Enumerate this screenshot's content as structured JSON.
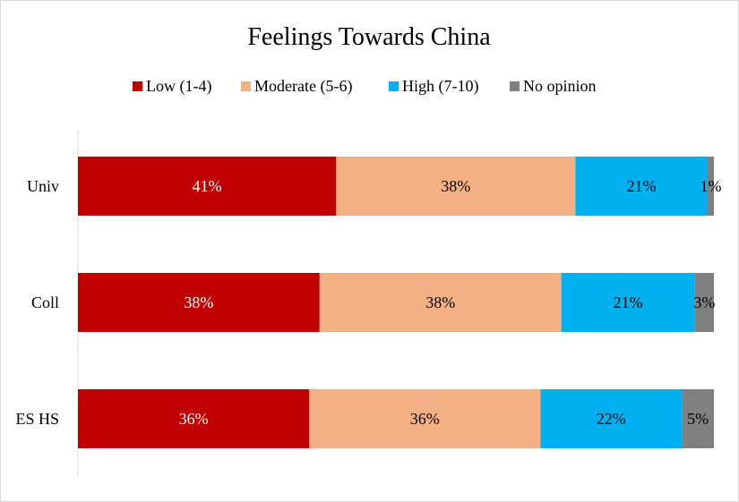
{
  "chart_data": {
    "type": "bar",
    "orientation": "horizontal",
    "stacked": true,
    "title": "Feelings Towards China",
    "categories": [
      "Univ",
      "Coll",
      "ES HS"
    ],
    "series": [
      {
        "name": "Low (1-4)",
        "color": "#c00000",
        "label_color": "#ffffff",
        "values": [
          41,
          38,
          36
        ]
      },
      {
        "name": "Moderate (5-6)",
        "color": "#f4b183",
        "label_color": "#000000",
        "values": [
          38,
          38,
          36
        ]
      },
      {
        "name": "High (7-10)",
        "color": "#00b0f0",
        "label_color": "#000000",
        "values": [
          21,
          21,
          22
        ]
      },
      {
        "name": "No  opinion",
        "color": "#808080",
        "label_color": "#000000",
        "values": [
          1,
          3,
          5
        ]
      }
    ],
    "value_suffix": "%",
    "legend_position": "top",
    "grid": false
  }
}
